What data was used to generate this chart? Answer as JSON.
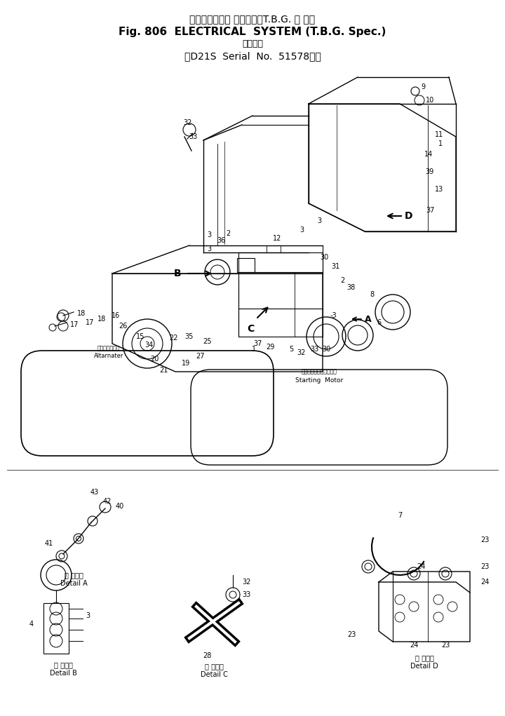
{
  "title_line1": "エレクトリカル システム（T.B.G. 仕 様）",
  "title_line2": "Fig. 806  ELECTRICAL  SYSTEM (T.B.G. Spec.)",
  "title_line3": "適用号機",
  "title_line4": "（D21S  Serial  No.  51578～）",
  "bg_color": "#ffffff",
  "fig_width": 7.2,
  "fig_height": 10.21
}
